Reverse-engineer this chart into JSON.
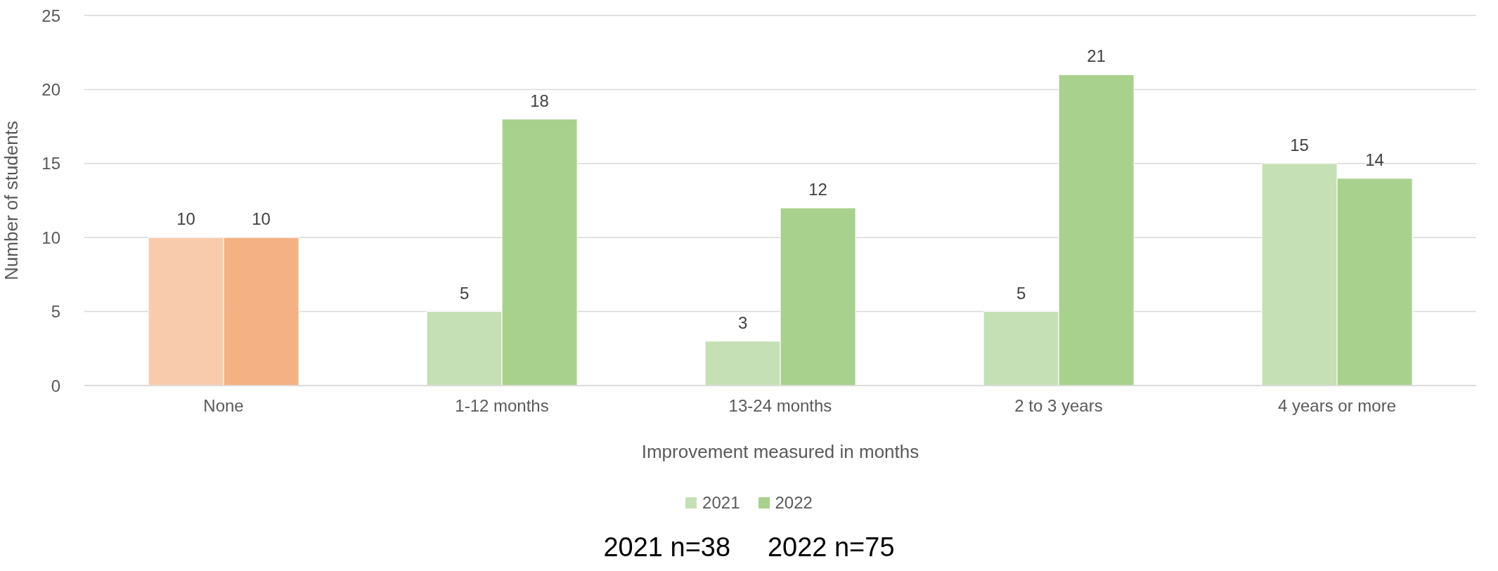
{
  "chart_data": {
    "type": "bar",
    "xlabel": "Improvement measured in months",
    "ylabel": "Number of students",
    "categories": [
      "None",
      "1-12 months",
      "13-24 months",
      "2 to 3 years",
      "4 years or more"
    ],
    "series": [
      {
        "name": "2021",
        "color": "#c5e0b4",
        "colors": [
          "#f8cbad",
          "#c5e0b4",
          "#c5e0b4",
          "#c5e0b4",
          "#c5e0b4"
        ],
        "values": [
          10,
          5,
          3,
          5,
          15
        ]
      },
      {
        "name": "2022",
        "color": "#a9d18e",
        "colors": [
          "#f4b183",
          "#a9d18e",
          "#a9d18e",
          "#a9d18e",
          "#a9d18e"
        ],
        "values": [
          10,
          18,
          12,
          21,
          14
        ]
      }
    ],
    "ylim": [
      0,
      25
    ],
    "yticks": [
      0,
      5,
      10,
      15,
      20,
      25
    ],
    "grid": "y",
    "legend": "bottom",
    "data_labels": true,
    "annotations": [
      "2021 n=38     2022 n=75"
    ]
  }
}
